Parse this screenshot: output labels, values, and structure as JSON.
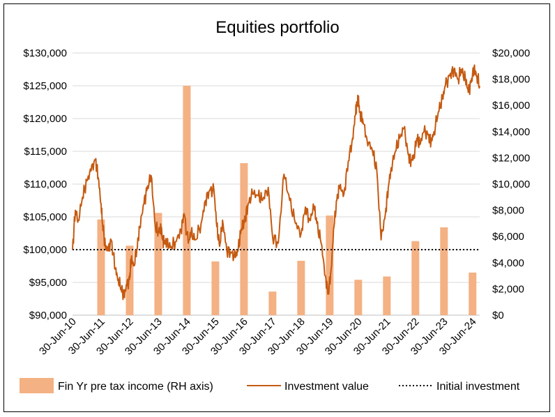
{
  "chart_data": {
    "type": "bar+line",
    "title": "Equities portfolio",
    "categories": [
      "30-Jun-10",
      "30-Jun-11",
      "30-Jun-12",
      "30-Jun-13",
      "30-Jun-14",
      "30-Jun-15",
      "30-Jun-16",
      "30-Jun-17",
      "30-Jun-18",
      "30-Jun-19",
      "30-Jun-20",
      "30-Jun-21",
      "30-Jun-22",
      "30-Jun-23",
      "30-Jun-24"
    ],
    "left_axis": {
      "ticks": [
        "$90,000",
        "$95,000",
        "$100,000",
        "$105,000",
        "$110,000",
        "$115,000",
        "$120,000",
        "$125,000",
        "$130,000"
      ],
      "ylim": [
        90000,
        130000
      ]
    },
    "right_axis": {
      "ticks": [
        "$0",
        "$2,000",
        "$4,000",
        "$6,000",
        "$8,000",
        "$10,000",
        "$12,000",
        "$14,000",
        "$16,000",
        "$18,000",
        "$20,000"
      ],
      "ylim": [
        0,
        20000
      ]
    },
    "grid": true,
    "legend_position": "bottom",
    "series": [
      {
        "name": "Fin Yr pre tax income (RH axis)",
        "type": "bar",
        "axis": "right",
        "color": "#F4B183",
        "x": [
          2011,
          2012,
          2013,
          2014,
          2015,
          2016,
          2017,
          2018,
          2019,
          2020,
          2021,
          2022,
          2023,
          2024
        ],
        "values": [
          7300,
          5300,
          7800,
          17500,
          4100,
          11600,
          1800,
          4150,
          7600,
          2700,
          2950,
          5650,
          6700,
          3250
        ]
      },
      {
        "name": "Investment value",
        "type": "line",
        "axis": "left",
        "color": "#C55A11",
        "x": [
          2010.0,
          2010.1,
          2010.2,
          2010.35,
          2010.5,
          2010.65,
          2010.8,
          2010.9,
          2011.0,
          2011.05,
          2011.15,
          2011.25,
          2011.35,
          2011.5,
          2011.6,
          2011.7,
          2011.8,
          2011.9,
          2012.0,
          2012.05,
          2012.15,
          2012.25,
          2012.35,
          2012.5,
          2012.6,
          2012.75,
          2012.9,
          2013.0,
          2013.1,
          2013.15,
          2013.2,
          2013.3,
          2013.45,
          2013.6,
          2013.8,
          2013.9,
          2014.05,
          2014.15,
          2014.3,
          2014.5,
          2014.65,
          2014.8,
          2014.95,
          2015.05,
          2015.15,
          2015.25,
          2015.4,
          2015.55,
          2015.7,
          2015.8,
          2015.9,
          2016.0,
          2016.05,
          2016.15,
          2016.3,
          2016.5,
          2016.65,
          2016.85,
          2017.0,
          2017.2,
          2017.4,
          2017.6,
          2017.8,
          2018.0,
          2018.15,
          2018.3,
          2018.45,
          2018.55,
          2018.7,
          2018.85,
          2018.95,
          2019.05,
          2019.15,
          2019.25,
          2019.35,
          2019.5,
          2019.65,
          2019.8,
          2019.9,
          2019.95,
          2020.0,
          2020.05,
          2020.15,
          2020.3,
          2020.5,
          2020.65,
          2020.8,
          2020.95,
          2021.05,
          2021.15,
          2021.3,
          2021.45,
          2021.6,
          2021.75,
          2021.85,
          2021.95,
          2022.05,
          2022.15,
          2022.3,
          2022.45,
          2022.55,
          2022.65,
          2022.8,
          2022.95,
          2023.05,
          2023.2,
          2023.35,
          2023.5,
          2023.6,
          2023.75,
          2023.85,
          2023.95,
          2024.05,
          2024.15,
          2024.25
        ],
        "values": [
          100000,
          106000,
          104500,
          108000,
          110500,
          112000,
          113800,
          111000,
          107000,
          104000,
          100500,
          99800,
          101500,
          97000,
          95500,
          94200,
          93000,
          94500,
          95500,
          98500,
          97800,
          100000,
          103500,
          107000,
          109000,
          111300,
          103500,
          102800,
          103500,
          101500,
          101200,
          100800,
          100500,
          101200,
          103000,
          105500,
          101000,
          102500,
          101500,
          104000,
          107500,
          109000,
          109000,
          103500,
          100500,
          104500,
          100000,
          99500,
          98800,
          100000,
          103000,
          104500,
          105000,
          107000,
          108500,
          108200,
          107500,
          109500,
          102000,
          101000,
          111500,
          107500,
          104000,
          102500,
          106500,
          104500,
          106500,
          104000,
          101000,
          96000,
          93300,
          97000,
          103500,
          107500,
          109500,
          108500,
          113500,
          117000,
          120500,
          122000,
          123000,
          121000,
          120000,
          117000,
          115000,
          112000,
          101500,
          105500,
          109500,
          112500,
          115000,
          117000,
          118500,
          114500,
          113500,
          114500,
          117000,
          116000,
          118000,
          117500,
          116500,
          118000,
          121000,
          123000,
          125000,
          126500,
          127500,
          126000,
          127500,
          126000,
          124000,
          125500,
          127800,
          126500,
          125000
        ],
        "values_note": ""
      },
      {
        "name": "Initial investment",
        "type": "line",
        "style": "dotted",
        "axis": "left",
        "color": "#000000",
        "x": [
          2010.0,
          2024.25
        ],
        "values": [
          100000,
          100000
        ]
      }
    ]
  }
}
